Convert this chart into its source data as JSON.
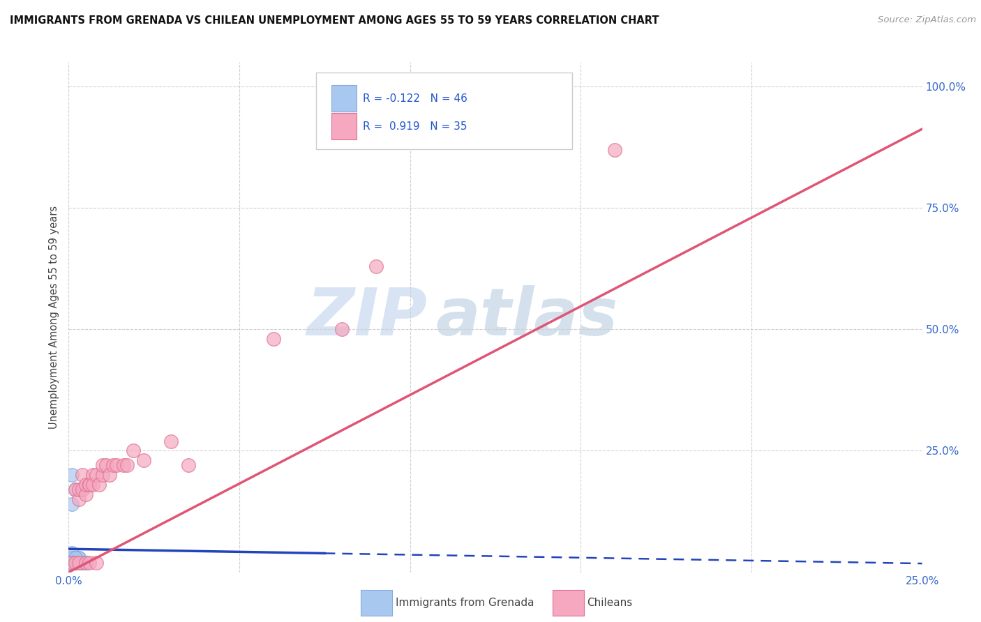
{
  "title": "IMMIGRANTS FROM GRENADA VS CHILEAN UNEMPLOYMENT AMONG AGES 55 TO 59 YEARS CORRELATION CHART",
  "source": "Source: ZipAtlas.com",
  "ylabel": "Unemployment Among Ages 55 to 59 years",
  "xlim": [
    0.0,
    0.25
  ],
  "ylim": [
    0.0,
    1.05
  ],
  "xticks": [
    0.0,
    0.05,
    0.1,
    0.15,
    0.2,
    0.25
  ],
  "yticks": [
    0.0,
    0.25,
    0.5,
    0.75,
    1.0
  ],
  "xticklabels": [
    "0.0%",
    "",
    "",
    "",
    "",
    "25.0%"
  ],
  "yticklabels_right": [
    "",
    "25.0%",
    "50.0%",
    "75.0%",
    "100.0%"
  ],
  "background_color": "#ffffff",
  "grid_color": "#d0d0d0",
  "watermark_zip": "ZIP",
  "watermark_atlas": "atlas",
  "blue_scatter_x": [
    0.001,
    0.002,
    0.001,
    0.003,
    0.002,
    0.001,
    0.002,
    0.003,
    0.001,
    0.002,
    0.001,
    0.002,
    0.001,
    0.002,
    0.003,
    0.001,
    0.002,
    0.001,
    0.002,
    0.001,
    0.002,
    0.001,
    0.002,
    0.001,
    0.002,
    0.003,
    0.001,
    0.002,
    0.001,
    0.002,
    0.001,
    0.002,
    0.001,
    0.002,
    0.001,
    0.002,
    0.001,
    0.002,
    0.001,
    0.002,
    0.003,
    0.003,
    0.003,
    0.004,
    0.004,
    0.005
  ],
  "blue_scatter_y": [
    0.2,
    0.17,
    0.14,
    0.03,
    0.02,
    0.04,
    0.03,
    0.02,
    0.03,
    0.02,
    0.02,
    0.03,
    0.02,
    0.02,
    0.03,
    0.02,
    0.02,
    0.02,
    0.02,
    0.02,
    0.03,
    0.02,
    0.02,
    0.02,
    0.02,
    0.02,
    0.02,
    0.02,
    0.02,
    0.02,
    0.02,
    0.02,
    0.02,
    0.02,
    0.02,
    0.02,
    0.02,
    0.02,
    0.02,
    0.02,
    0.02,
    0.02,
    0.02,
    0.02,
    0.02,
    0.02
  ],
  "pink_scatter_x": [
    0.001,
    0.002,
    0.002,
    0.003,
    0.003,
    0.003,
    0.004,
    0.004,
    0.005,
    0.005,
    0.005,
    0.006,
    0.006,
    0.006,
    0.007,
    0.007,
    0.008,
    0.008,
    0.009,
    0.01,
    0.01,
    0.011,
    0.012,
    0.013,
    0.014,
    0.016,
    0.017,
    0.019,
    0.022,
    0.03,
    0.035,
    0.06,
    0.08,
    0.09,
    0.16
  ],
  "pink_scatter_y": [
    0.02,
    0.02,
    0.17,
    0.15,
    0.17,
    0.02,
    0.17,
    0.2,
    0.16,
    0.18,
    0.02,
    0.18,
    0.18,
    0.02,
    0.2,
    0.18,
    0.2,
    0.02,
    0.18,
    0.2,
    0.22,
    0.22,
    0.2,
    0.22,
    0.22,
    0.22,
    0.22,
    0.25,
    0.23,
    0.27,
    0.22,
    0.48,
    0.5,
    0.63,
    0.87
  ],
  "blue_line_intercept": 0.048,
  "blue_line_slope": -0.12,
  "blue_line_solid_end": 0.075,
  "blue_line_x_end": 0.25,
  "pink_line_intercept": 0.0,
  "pink_line_slope": 3.65,
  "pink_line_x_start": 0.0,
  "pink_line_x_end": 0.25,
  "legend_r1": "R = -0.122",
  "legend_n1": "N = 46",
  "legend_r2": "R =  0.919",
  "legend_n2": "N = 35",
  "legend_color1": "#a8c4e8",
  "legend_color2": "#f0a0b8",
  "bottom_legend_labels": [
    "Immigrants from Grenada",
    "Chileans"
  ],
  "bottom_legend_colors": [
    "#a8c4e8",
    "#f0a0b8"
  ]
}
